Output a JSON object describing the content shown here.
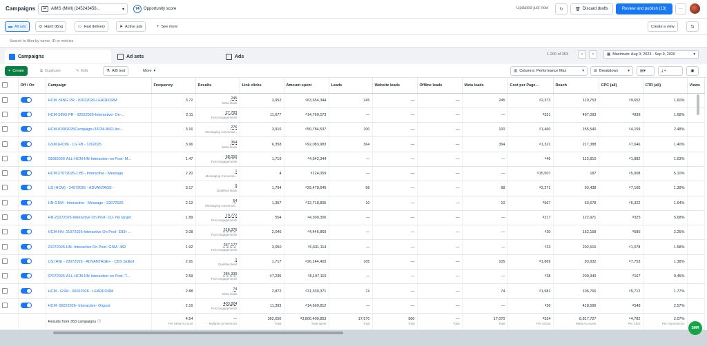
{
  "header": {
    "title": "Campaigns",
    "account_select": "AIMS (MMI) (245243456...",
    "opportunity_score_value": "74",
    "opportunity_score_label": "Opportunity score",
    "updated_status": "Updated just now",
    "discard_label": "Discard drafts",
    "publish_label": "Review and publish (13)",
    "more_label": "···"
  },
  "nav": {
    "tabs": [
      {
        "label": "All ads",
        "active": true
      },
      {
        "label": "Hành động"
      },
      {
        "label": "Had delivery"
      },
      {
        "label": "Active ads"
      }
    ],
    "see_more": "See more",
    "create_view": "Create a view"
  },
  "search": {
    "placeholder": "Search to filter by name, ID or metrics"
  },
  "level_tabs": {
    "campaigns": "Campaigns",
    "adsets": "Ad sets",
    "ads": "Ads"
  },
  "pagination": {
    "range": "1-200 of 353"
  },
  "date_range": "Maximum: Aug 9, 2023 - Sep 9, 2026",
  "toolbar": {
    "create": "Create",
    "duplicate": "Duplicate",
    "edit": "Edit",
    "ab_test": "A/B test",
    "more": "More",
    "columns": "Columns: Performance Max",
    "breakdown": "Breakdown"
  },
  "columns": {
    "off_on": "Off / On",
    "campaign": "Campaign",
    "frequency": "Frequency",
    "results": "Results",
    "link_clicks": "Link clicks",
    "amount_spent": "Amount spent",
    "leads": "Leads",
    "website_leads": "Website leads",
    "offline_leads": "Offline leads",
    "meta_leads": "Meta leads",
    "cost_per_page": "Cost per Page...",
    "reach": "Reach",
    "cpc": "CPC (all)",
    "ctr": "CTR (all)",
    "views": "Views"
  },
  "rows": [
    {
      "name": "HCM -SING PR - 02022026-LEADFORM",
      "freq": "3.72",
      "result": "245",
      "result_type": "Meta leads",
      "clicks": "3,952",
      "spent": "₫63,654,344",
      "leads": "245",
      "web": "—",
      "offline": "—",
      "meta": "245",
      "cost": "₫2,373",
      "reach": "110,753",
      "cpc": "₫9,652",
      "ctr": "1.60%"
    },
    {
      "name": "HCM-SING PR - 02022026-Interactive- On-...",
      "freq": "2.11",
      "result": "27,783",
      "result_type": "Post engagements",
      "clicks": "11,677",
      "spent": "₫14,760,073",
      "leads": "—",
      "web": "—",
      "offline": "—",
      "meta": "—",
      "cost": "₫531",
      "reach": "497,093",
      "cpc": "₫838",
      "ctr": "1.68%"
    },
    {
      "name": "HCM-01082025Campaign»33CM-ASO-Inc...",
      "freq": "3.16",
      "result": "276",
      "result_type": "Messaging conversat...",
      "clicks": "3,916",
      "spent": "₫50,784,537",
      "leads": "100",
      "web": "—",
      "offline": "—",
      "meta": "100",
      "cost": "₫1,460",
      "reach": "155,540",
      "cpc": "₫4,159",
      "ctr": "2.48%"
    },
    {
      "name": "GSM (HCM) - LG FB - 1262025",
      "freq": "3.96",
      "result": "364",
      "result_type": "Meta leads",
      "clicks": "6,358",
      "spent": "₫92,083,983",
      "leads": "364",
      "web": "—",
      "offline": "—",
      "meta": "364",
      "cost": "₫1,321",
      "reach": "217,388",
      "cpc": "₫7,646",
      "ctr": "1.40%"
    },
    {
      "name": "03082026-ALL-HCM-HN-Interaction on Post- M...",
      "freq": "1.47",
      "result": "98,050",
      "result_type": "Post engagements",
      "clicks": "1,719",
      "spent": "₫4,542,344",
      "leads": "—",
      "web": "—",
      "offline": "—",
      "meta": "—",
      "cost": "₫46",
      "reach": "112,810",
      "cpc": "₫1,882",
      "ctr": "1.63%"
    },
    {
      "name": "HCM-27072026-1:85 - Interactive - Message",
      "freq": "2.20",
      "result": "1",
      "result_type": "Messaging Conversa...",
      "clicks": "4",
      "spent": "₫124,059",
      "leads": "—",
      "web": "—",
      "offline": "—",
      "meta": "—",
      "cost": "₫15,507",
      "reach": "187",
      "cpc": "₫5,908",
      "ctr": "5.10%"
    },
    {
      "name": "US (HCM) - 24072026 - ADVANTAGE -",
      "freq": "3.17",
      "result": "9",
      "result_type": "Qualified leads",
      "clicks": "1,794",
      "spent": "₫29,478,649",
      "leads": "98",
      "web": "—",
      "offline": "—",
      "meta": "98",
      "cost": "₫2,271",
      "reach": "93,438",
      "cpc": "₫7,160",
      "ctr": "1.39%"
    },
    {
      "name": "HN-GSM - Interactive - Message - 22072026",
      "freq": "2.12",
      "result": "54",
      "result_type": "Messaging conversat...",
      "clicks": "1,357",
      "spent": "₫12,718,805",
      "leads": "10",
      "web": "—",
      "offline": "—",
      "meta": "10",
      "cost": "₫567",
      "reach": "63,678",
      "cpc": "₫5,322",
      "ctr": "1.64%"
    },
    {
      "name": "HN-21072026-Interactive On Post- CU- No target",
      "freq": "1.89",
      "result": "19,772",
      "result_type": "Post engagements",
      "clicks": "554",
      "spent": "₫4,300,306",
      "leads": "—",
      "web": "—",
      "offline": "—",
      "meta": "—",
      "cost": "₫217",
      "reach": "122,971",
      "cpc": "₫325",
      "ctr": "5.68%"
    },
    {
      "name": "HCM-HN- 21072026-Interactive On Post- E83+...",
      "freq": "2.08",
      "result": "218,376",
      "result_type": "Post engagements",
      "clicks": "2,046",
      "spent": "₫4,446,869",
      "leads": "—",
      "web": "—",
      "offline": "—",
      "meta": "—",
      "cost": "₫20",
      "reach": "162,158",
      "cpc": "₫585",
      "ctr": "2.25%"
    },
    {
      "name": "21072026-HN- Interactive On Post- GSM- 482",
      "freq": "1.92",
      "result": "267,177",
      "result_type": "Post engagements",
      "clicks": "3,050",
      "spent": "₫6,631,114",
      "leads": "—",
      "web": "—",
      "offline": "—",
      "meta": "—",
      "cost": "₫23",
      "reach": "202,616",
      "cpc": "₫1,078",
      "ctr": "1.58%"
    },
    {
      "name": "US (HN) - 20072026 - ADVANTAGE+ - CBS Skilled",
      "freq": "2.91",
      "result": "1",
      "result_type": "Qualified lead",
      "clicks": "1,717",
      "spent": "₫26,144,403",
      "leads": "105",
      "web": "—",
      "offline": "—",
      "meta": "105",
      "cost": "₫1,869",
      "reach": "83,932",
      "cpc": "₫7,753",
      "ctr": "1.38%"
    },
    {
      "name": "07072026-ALL-HCM-HN-Interaction on Post- T...",
      "freq": "2.59",
      "result": "284,339",
      "result_type": "Post engagements",
      "clicks": "47,235",
      "spent": "₫8,107,110",
      "leads": "—",
      "web": "—",
      "offline": "—",
      "meta": "—",
      "cost": "₫28",
      "reach": "200,340",
      "cpc": "₫167",
      "ctr": "9.45%"
    },
    {
      "name": "HCM - GSM - 06022026 - LEADFORM",
      "freq": "2.88",
      "result": "74",
      "result_type": "Meta leads",
      "clicks": "2,872",
      "spent": "₫31,339,371",
      "leads": "74",
      "web": "—",
      "offline": "—",
      "meta": "74",
      "cost": "₫1,581",
      "reach": "106,766",
      "cpc": "₫5,712",
      "ctr": "1.77%"
    },
    {
      "name": "HCM- 06022026- Interactive- Onpost",
      "freq": "2.16",
      "result": "403,824",
      "result_type": "Post engagements",
      "clicks": "11,393",
      "spent": "₫14,669,812",
      "leads": "—",
      "web": "—",
      "offline": "—",
      "meta": "—",
      "cost": "₫36",
      "reach": "418,596",
      "cpc": "₫548",
      "ctr": "2.57%"
    }
  ],
  "summary": {
    "label": "Results from 353 campaigns",
    "freq": "4.54",
    "freq_sub": "Per Meta Account",
    "result": "—",
    "result_sub": "Multiple conversions",
    "clicks": "362,650",
    "clicks_sub": "Total",
    "spent": "₫3,800,400,853",
    "spent_sub": "Total spent",
    "leads": "17,570",
    "leads_sub": "Total",
    "web": "500",
    "web_sub": "Total",
    "offline": "—",
    "offline_sub": "Total",
    "meta": "17,070",
    "meta_sub": "Total",
    "cost": "₫534",
    "cost_sub": "Per Action",
    "reach": "8,817,727",
    "reach_sub": "Meta Accounts",
    "cpc": "₫4,782",
    "cpc_sub": "Per Click",
    "ctr": "2.07%",
    "ctr_sub": "Per Impressions"
  },
  "fab_label": "SMR",
  "colors": {
    "accent": "#1877f2",
    "create": "#0a7d44",
    "fab": "#16a34a"
  }
}
